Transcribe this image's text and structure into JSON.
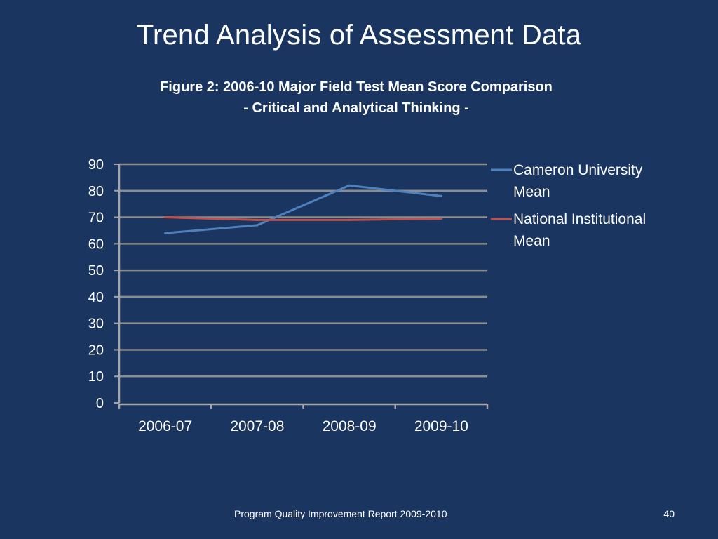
{
  "slide": {
    "title": "Trend Analysis of Assessment Data",
    "footer": "Program Quality Improvement Report 2009-2010",
    "page_number": "40"
  },
  "colors": {
    "background": "#193560",
    "gridline": "#8c8c8c",
    "axis": "#a6a6a6",
    "series_cameron": "#4f81bd",
    "series_national": "#c0504d"
  },
  "chart_data": {
    "type": "line",
    "title": "Figure 2: 2006-10 Major Field Test Mean Score Comparison",
    "subtitle": "- Critical and Analytical Thinking -",
    "xlabel": "",
    "ylabel": "",
    "categories": [
      "2006-07",
      "2007-08",
      "2008-09",
      "2009-10"
    ],
    "ylim": [
      0,
      90
    ],
    "yticks": [
      0,
      10,
      20,
      30,
      40,
      50,
      60,
      70,
      80,
      90
    ],
    "grid": true,
    "legend_position": "right",
    "series": [
      {
        "name": "Cameron University Mean",
        "values": [
          64,
          67,
          82,
          78
        ],
        "color": "#4f81bd"
      },
      {
        "name": "National Institutional Mean",
        "values": [
          70,
          69,
          69,
          69.5
        ],
        "color": "#c0504d"
      }
    ]
  }
}
